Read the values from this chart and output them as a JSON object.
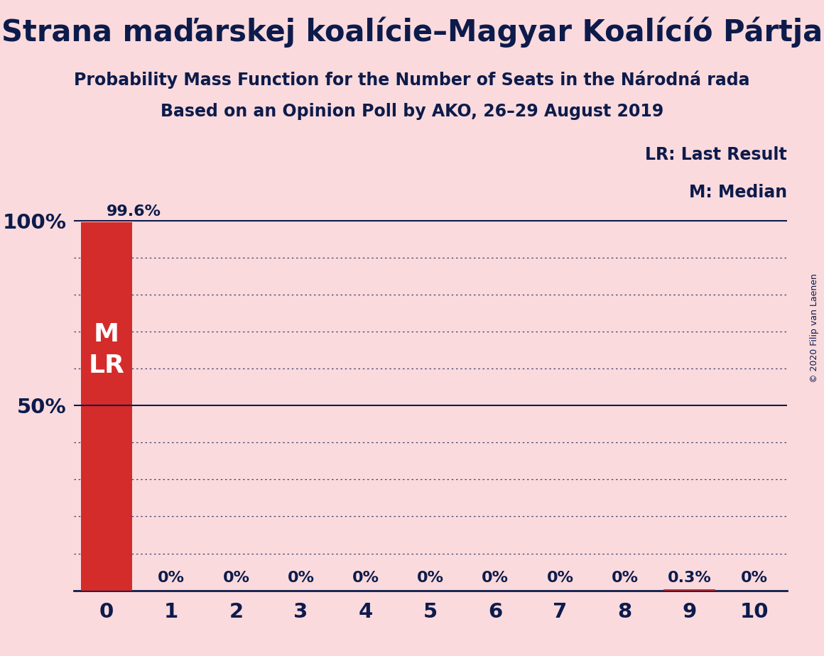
{
  "title": "Strana maďarskej koalície–Magyar Koalícíó Pártja",
  "subtitle1": "Probability Mass Function for the Number of Seats in the Národná rada",
  "subtitle2": "Based on an Opinion Poll by AKO, 26–29 August 2019",
  "copyright": "© 2020 Filip van Laenen",
  "x_ticks": [
    0,
    1,
    2,
    3,
    4,
    5,
    6,
    7,
    8,
    9,
    10
  ],
  "xlim": [
    -0.5,
    10.5
  ],
  "ylim": [
    0,
    110
  ],
  "categories": [
    0,
    1,
    2,
    3,
    4,
    5,
    6,
    7,
    8,
    9,
    10
  ],
  "values": [
    99.6,
    0.0,
    0.0,
    0.0,
    0.0,
    0.0,
    0.0,
    0.0,
    0.0,
    0.3,
    0.0
  ],
  "bar_labels": [
    "99.6%",
    "0%",
    "0%",
    "0%",
    "0%",
    "0%",
    "0%",
    "0%",
    "0%",
    "0.3%",
    "0%"
  ],
  "bar_color": "#D42B2B",
  "background_color": "#FADADD",
  "text_color": "#0D1B4B",
  "bar_label_color_inside": "#FFFFFF",
  "bar_label_color_outside": "#0D1B4B",
  "legend_lr": "LR: Last Result",
  "legend_m": "M: Median",
  "dotted_grid_levels": [
    10,
    20,
    30,
    40,
    60,
    70,
    80,
    90
  ],
  "title_fontsize": 30,
  "subtitle_fontsize": 17,
  "axis_tick_fontsize": 21,
  "bar_label_fontsize": 16,
  "bar_inside_label_fontsize": 26,
  "legend_fontsize": 17,
  "copyright_fontsize": 9
}
